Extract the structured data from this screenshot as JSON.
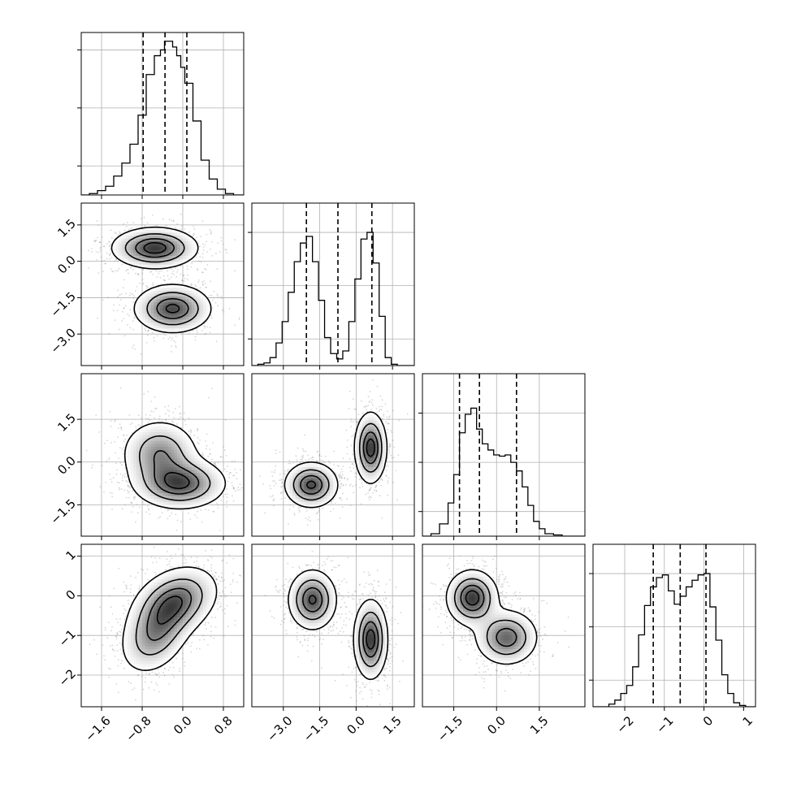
{
  "chart_data": {
    "type": "corner",
    "grid": true,
    "colors": {
      "line": "#000000",
      "grid": "#b0b0b0",
      "points": "#7f7f7f"
    },
    "params": [
      {
        "id": "p0",
        "range": [
          -2.0,
          1.2
        ],
        "ticks": [
          -1.6,
          -0.8,
          0.0,
          0.8
        ],
        "tick_labels": [
          "−1.6",
          "−0.8",
          "0.0",
          "0.8"
        ]
      },
      {
        "id": "p1",
        "range": [
          -4.3,
          2.4
        ],
        "ticks": [
          -3.0,
          -1.5,
          0.0,
          1.5
        ],
        "tick_labels": [
          "−3.0",
          "−1.5",
          "0.0",
          "1.5"
        ]
      },
      {
        "id": "p2",
        "range": [
          -2.6,
          3.1
        ],
        "ticks": [
          -1.5,
          0.0,
          1.5
        ],
        "tick_labels": [
          "−1.5",
          "0.0",
          "1.5"
        ]
      },
      {
        "id": "p3",
        "range": [
          -2.8,
          1.3
        ],
        "ticks": [
          -2,
          -1,
          0,
          1
        ],
        "tick_labels": [
          "−2",
          "−1",
          "0",
          "1"
        ]
      }
    ],
    "histograms": [
      {
        "param": "p0",
        "quantiles": [
          -0.78,
          -0.35,
          0.08
        ],
        "y_max": 1.12,
        "y_ticks": [
          0.2,
          0.6,
          1.0
        ],
        "edges": [
          -2.0,
          -1.84,
          -1.68,
          -1.52,
          -1.36,
          -1.2,
          -1.04,
          -0.88,
          -0.72,
          -0.56,
          -0.44,
          -0.36,
          -0.28,
          -0.2,
          -0.12,
          -0.04,
          0.04,
          0.2,
          0.36,
          0.52,
          0.68,
          0.84,
          1.0,
          1.2
        ],
        "counts": [
          0,
          0.01,
          0.03,
          0.06,
          0.13,
          0.22,
          0.35,
          0.55,
          0.83,
          0.96,
          1.0,
          1.06,
          1.06,
          1.02,
          0.96,
          0.88,
          0.77,
          0.51,
          0.24,
          0.11,
          0.04,
          0.01,
          0
        ]
      },
      {
        "param": "p1",
        "quantiles": [
          -2.05,
          -0.75,
          0.65
        ],
        "y_max": 1.22,
        "y_ticks": [
          0.2,
          0.6,
          1.0
        ],
        "edges": [
          -4.3,
          -4.05,
          -3.8,
          -3.55,
          -3.3,
          -3.05,
          -2.8,
          -2.55,
          -2.3,
          -2.05,
          -1.8,
          -1.55,
          -1.3,
          -1.05,
          -0.8,
          -0.55,
          -0.3,
          -0.05,
          0.2,
          0.45,
          0.7,
          0.95,
          1.2,
          1.45,
          1.7,
          2.4
        ],
        "counts": [
          0,
          0.01,
          0.02,
          0.06,
          0.17,
          0.33,
          0.55,
          0.78,
          0.92,
          0.97,
          0.78,
          0.49,
          0.21,
          0.09,
          0.05,
          0.11,
          0.33,
          0.65,
          0.95,
          1.0,
          0.77,
          0.37,
          0.06,
          0.01,
          0
        ]
      },
      {
        "param": "p2",
        "quantiles": [
          -1.3,
          -0.6,
          0.7
        ],
        "y_max": 1.32,
        "y_ticks": [
          0.2,
          0.6,
          1.0
        ],
        "edges": [
          -2.6,
          -2.3,
          -2.0,
          -1.7,
          -1.5,
          -1.3,
          -1.1,
          -0.9,
          -0.7,
          -0.5,
          -0.3,
          -0.1,
          0.1,
          0.3,
          0.5,
          0.7,
          0.9,
          1.1,
          1.3,
          1.5,
          1.7,
          2.0,
          2.3,
          3.1
        ],
        "counts": [
          0,
          0.02,
          0.1,
          0.27,
          0.5,
          0.84,
          0.99,
          1.04,
          0.87,
          0.75,
          0.7,
          0.66,
          0.65,
          0.66,
          0.6,
          0.53,
          0.4,
          0.25,
          0.12,
          0.06,
          0.02,
          0.01,
          0
        ]
      },
      {
        "param": "p3",
        "quantiles": [
          -1.28,
          -0.6,
          0.05
        ],
        "y_max": 1.22,
        "y_ticks": [
          0.2,
          0.6,
          1.0
        ],
        "edges": [
          -2.8,
          -2.4,
          -2.25,
          -2.1,
          -1.95,
          -1.8,
          -1.65,
          -1.5,
          -1.35,
          -1.2,
          -1.05,
          -0.9,
          -0.75,
          -0.6,
          -0.45,
          -0.3,
          -0.15,
          0.0,
          0.15,
          0.3,
          0.45,
          0.6,
          0.75,
          0.9,
          1.05,
          1.3
        ],
        "counts": [
          0,
          0.02,
          0.05,
          0.1,
          0.16,
          0.3,
          0.54,
          0.76,
          0.9,
          0.97,
          0.99,
          0.87,
          0.77,
          0.83,
          0.9,
          0.95,
          0.99,
          1.0,
          0.75,
          0.5,
          0.24,
          0.1,
          0.03,
          0.01,
          0
        ]
      }
    ],
    "joint": [
      {
        "x": "p0",
        "y": "p1",
        "components": [
          {
            "w": 0.5,
            "mx": -0.55,
            "my": 0.55,
            "sx": 0.42,
            "sy": 0.42,
            "r": 0
          },
          {
            "w": 0.5,
            "mx": -0.2,
            "my": -1.95,
            "sx": 0.38,
            "sy": 0.5,
            "r": 0
          }
        ]
      },
      {
        "x": "p0",
        "y": "p2",
        "components": [
          {
            "w": 0.45,
            "mx": -0.45,
            "my": 0.3,
            "sx": 0.38,
            "sy": 0.6,
            "r": 0
          },
          {
            "w": 0.55,
            "mx": -0.05,
            "my": -0.75,
            "sx": 0.45,
            "sy": 0.45,
            "r": 0
          }
        ]
      },
      {
        "x": "p0",
        "y": "p3",
        "components": [
          {
            "w": 0.4,
            "mx": -0.55,
            "my": -1.0,
            "sx": 0.35,
            "sy": 0.5,
            "r": 0.3
          },
          {
            "w": 0.6,
            "mx": -0.15,
            "my": -0.15,
            "sx": 0.42,
            "sy": 0.45,
            "r": 0.3
          }
        ]
      },
      {
        "x": "p1",
        "y": "p2",
        "components": [
          {
            "w": 0.5,
            "mx": -1.85,
            "my": -0.8,
            "sx": 0.55,
            "sy": 0.4,
            "r": 0
          },
          {
            "w": 0.5,
            "mx": 0.6,
            "my": 0.5,
            "sx": 0.33,
            "sy": 0.62,
            "r": 0
          }
        ]
      },
      {
        "x": "p1",
        "y": "p3",
        "components": [
          {
            "w": 0.5,
            "mx": -1.8,
            "my": -0.1,
            "sx": 0.5,
            "sy": 0.38,
            "r": 0
          },
          {
            "w": 0.5,
            "mx": 0.6,
            "my": -1.1,
            "sx": 0.35,
            "sy": 0.5,
            "r": 0
          }
        ]
      },
      {
        "x": "p2",
        "y": "p3",
        "components": [
          {
            "w": 0.5,
            "mx": -0.85,
            "my": -0.05,
            "sx": 0.45,
            "sy": 0.35,
            "r": 0
          },
          {
            "w": 0.5,
            "mx": 0.35,
            "my": -1.05,
            "sx": 0.55,
            "sy": 0.35,
            "r": 0
          }
        ]
      }
    ]
  }
}
